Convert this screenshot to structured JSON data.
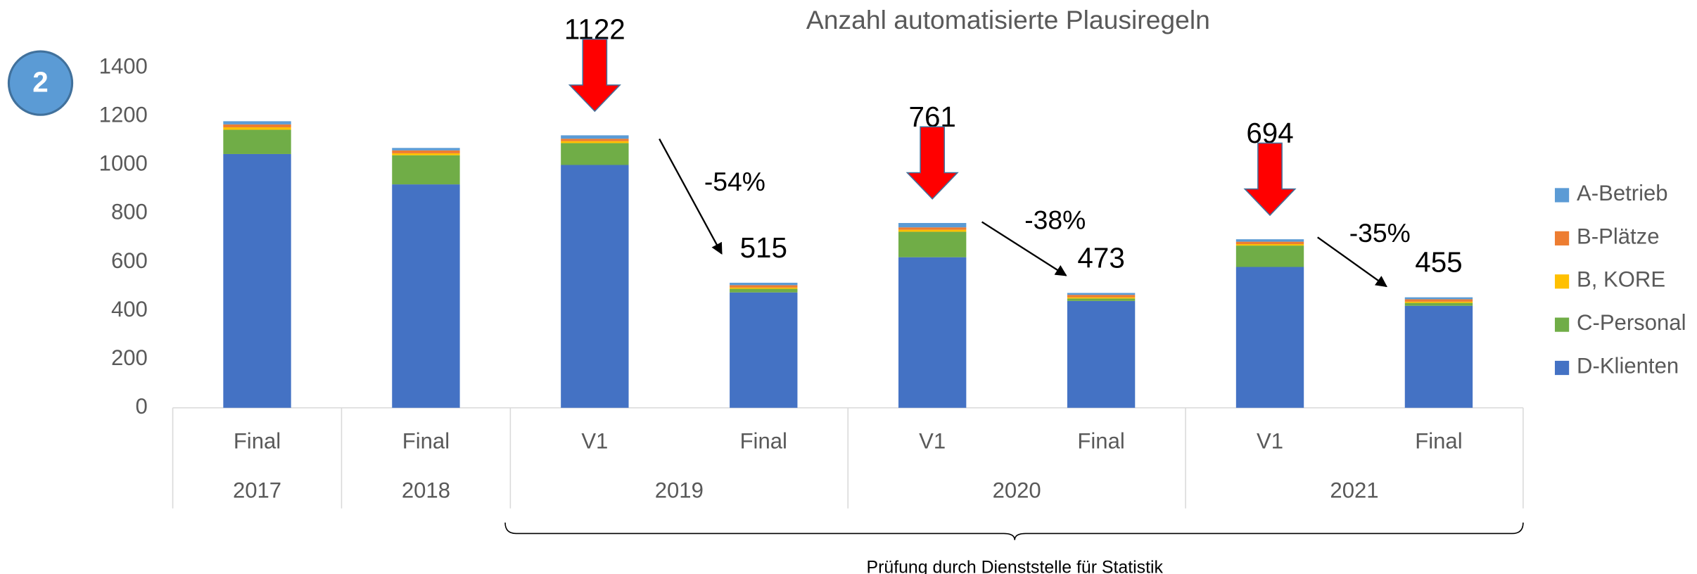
{
  "chart_data": {
    "type": "stacked_bar",
    "title": "Anzahl automatisierte Plausiregeln",
    "badge": "2",
    "categories": [
      "Final",
      "Final",
      "V1",
      "Final",
      "V1",
      "Final",
      "V1",
      "Final"
    ],
    "groups": [
      "2017",
      "2018",
      "2019",
      "2019",
      "2020",
      "2020",
      "2021",
      "2021"
    ],
    "series": [
      {
        "name": "D-Klienten",
        "color": "#4472c4",
        "values": [
          1045,
          920,
          1000,
          475,
          620,
          440,
          580,
          420
        ]
      },
      {
        "name": "C-Personal",
        "color": "#70ad47",
        "values": [
          100,
          120,
          90,
          15,
          105,
          10,
          88,
          12
        ]
      },
      {
        "name": "B, KORE",
        "color": "#ffc000",
        "values": [
          10,
          8,
          8,
          5,
          8,
          5,
          6,
          5
        ]
      },
      {
        "name": "B-Plätze",
        "color": "#ed7d31",
        "values": [
          12,
          12,
          10,
          10,
          10,
          10,
          10,
          10
        ]
      },
      {
        "name": "A-Betrieb",
        "color": "#5b9bd5",
        "values": [
          13,
          10,
          14,
          10,
          18,
          8,
          10,
          8
        ]
      }
    ],
    "total_labels": [
      null,
      null,
      1122,
      515,
      761,
      473,
      694,
      455
    ],
    "change_labels": [
      "-54%",
      "-38%",
      "-35%"
    ],
    "bracket_label": "Prüfung durch Dienststelle für Statistik",
    "ylim": [
      0,
      1400
    ],
    "yticks": [
      0,
      200,
      400,
      600,
      800,
      1000,
      1200,
      1400
    ],
    "grid": false
  }
}
